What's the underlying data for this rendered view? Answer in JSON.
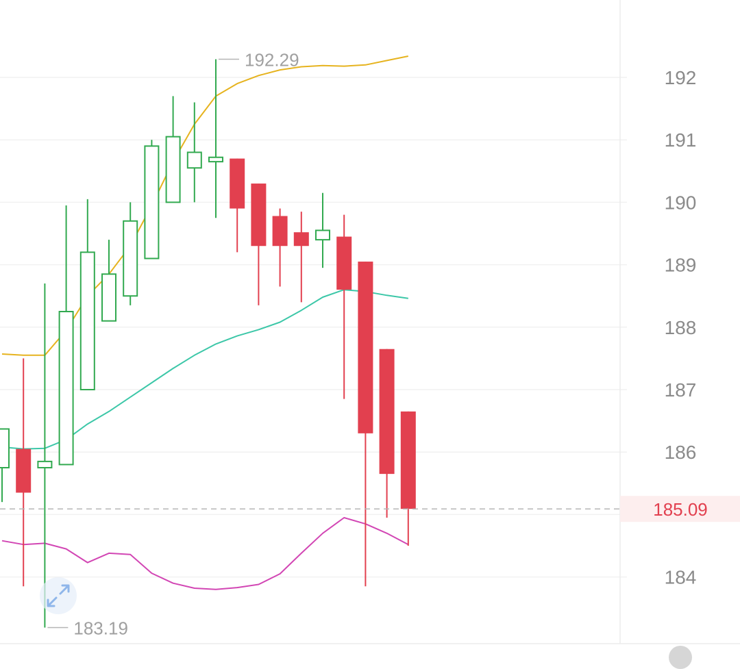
{
  "chart_data": {
    "type": "candlestick",
    "y_range": [
      183.0,
      193.0
    ],
    "y_ticks": [
      184,
      185,
      186,
      187,
      188,
      189,
      190,
      191,
      192
    ],
    "y_tick_labels": [
      "184",
      "186",
      "187",
      "188",
      "189",
      "190",
      "191",
      "192"
    ],
    "current_price": 185.09,
    "current_price_label": "185.09",
    "high_label": "192.29",
    "low_label": "183.19",
    "high_value": 192.29,
    "low_value": 183.19,
    "up_color": "#31a94f",
    "down_color": "#e2404f",
    "candles": [
      {
        "o": 185.75,
        "h": 186.37,
        "l": 185.2,
        "c": 186.37
      },
      {
        "o": 186.05,
        "h": 187.5,
        "l": 183.85,
        "c": 185.35
      },
      {
        "o": 185.75,
        "h": 188.7,
        "l": 183.19,
        "c": 185.85
      },
      {
        "o": 185.8,
        "h": 189.95,
        "l": 185.8,
        "c": 188.25
      },
      {
        "o": 187.0,
        "h": 190.05,
        "l": 187.0,
        "c": 189.2
      },
      {
        "o": 188.1,
        "h": 189.4,
        "l": 188.1,
        "c": 188.85
      },
      {
        "o": 188.5,
        "h": 190.0,
        "l": 188.35,
        "c": 189.7
      },
      {
        "o": 189.1,
        "h": 191.0,
        "l": 189.1,
        "c": 190.9
      },
      {
        "o": 190.0,
        "h": 191.7,
        "l": 190.0,
        "c": 191.05
      },
      {
        "o": 190.55,
        "h": 191.6,
        "l": 190.0,
        "c": 190.8
      },
      {
        "o": 190.65,
        "h": 192.29,
        "l": 189.75,
        "c": 190.72
      },
      {
        "o": 190.7,
        "h": 190.7,
        "l": 189.2,
        "c": 189.9
      },
      {
        "o": 190.3,
        "h": 190.3,
        "l": 188.35,
        "c": 189.3
      },
      {
        "o": 189.78,
        "h": 189.9,
        "l": 188.65,
        "c": 189.3
      },
      {
        "o": 189.52,
        "h": 189.85,
        "l": 188.4,
        "c": 189.3
      },
      {
        "o": 189.4,
        "h": 190.15,
        "l": 188.95,
        "c": 189.55
      },
      {
        "o": 189.45,
        "h": 189.8,
        "l": 186.85,
        "c": 188.6
      },
      {
        "o": 189.05,
        "h": 189.05,
        "l": 183.85,
        "c": 186.3
      },
      {
        "o": 187.65,
        "h": 187.65,
        "l": 184.95,
        "c": 185.65
      },
      {
        "o": 186.65,
        "h": 186.65,
        "l": 184.5,
        "c": 185.09
      }
    ],
    "ma_series": [
      {
        "color": "#e6b31e",
        "values": [
          187.57,
          187.55,
          187.55,
          187.95,
          188.5,
          188.85,
          189.3,
          189.95,
          190.65,
          191.25,
          191.7,
          191.9,
          192.03,
          192.12,
          192.17,
          192.19,
          192.18,
          192.2,
          192.27,
          192.34
        ]
      },
      {
        "color": "#3cc7a8",
        "values": [
          186.08,
          186.05,
          186.06,
          186.2,
          186.45,
          186.65,
          186.88,
          187.11,
          187.34,
          187.55,
          187.73,
          187.86,
          187.96,
          188.08,
          188.27,
          188.48,
          188.6,
          188.57,
          188.51,
          188.46
        ]
      },
      {
        "color": "#d246b4",
        "values": [
          184.58,
          184.52,
          184.54,
          184.45,
          184.23,
          184.38,
          184.36,
          184.06,
          183.9,
          183.82,
          183.8,
          183.83,
          183.88,
          184.05,
          184.38,
          184.7,
          184.95,
          184.85,
          184.7,
          184.52
        ]
      }
    ]
  }
}
